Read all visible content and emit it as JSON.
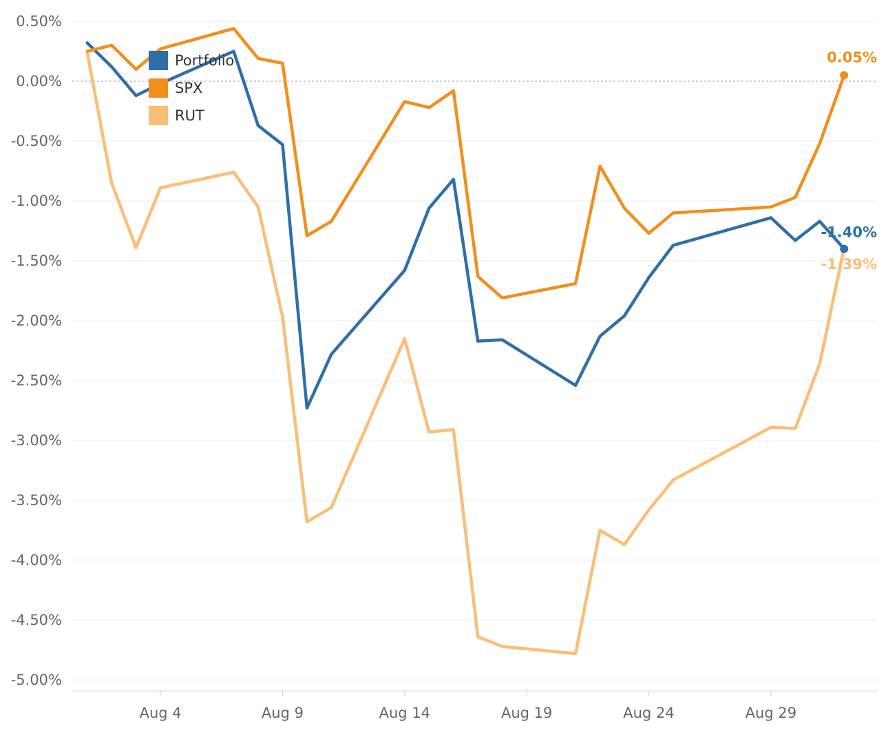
{
  "chart_data": {
    "type": "line",
    "title": "",
    "xlabel": "",
    "ylabel": "",
    "ylim": [
      -5.0,
      0.5
    ],
    "y_tick_labels": [
      "0.50%",
      "0.00%",
      "-0.50%",
      "-1.00%",
      "-1.50%",
      "-2.00%",
      "-2.50%",
      "-3.00%",
      "-3.50%",
      "-4.00%",
      "-4.50%",
      "-5.00%"
    ],
    "y_ticks": [
      0.5,
      0.0,
      -0.5,
      -1.0,
      -1.5,
      -2.0,
      -2.5,
      -3.0,
      -3.5,
      -4.0,
      -4.5,
      -5.0
    ],
    "x_ticks": [
      4,
      9,
      14,
      19,
      24,
      29
    ],
    "x_tick_labels": [
      "Aug 4",
      "Aug 9",
      "Aug 14",
      "Aug 19",
      "Aug 24",
      "Aug 29"
    ],
    "x_unit": "day of August",
    "xlim": [
      0.8,
      33.8
    ],
    "grid": "horizontal",
    "reference_line": 0.0,
    "legend_position": "top-left",
    "series": [
      {
        "name": "Portfolio",
        "color": "#2e6fa9",
        "end_label": "-1.40%",
        "points": [
          [
            1,
            0.32
          ],
          [
            2,
            0.12
          ],
          [
            3,
            -0.12
          ],
          [
            4,
            -0.02
          ],
          [
            7,
            0.25
          ],
          [
            8,
            -0.37
          ],
          [
            9,
            -0.53
          ],
          [
            10,
            -2.73
          ],
          [
            11,
            -2.28
          ],
          [
            14,
            -1.58
          ],
          [
            15,
            -1.06
          ],
          [
            16,
            -0.82
          ],
          [
            17,
            -2.17
          ],
          [
            18,
            -2.16
          ],
          [
            21,
            -2.54
          ],
          [
            22,
            -2.13
          ],
          [
            23,
            -1.96
          ],
          [
            24,
            -1.64
          ],
          [
            25,
            -1.37
          ],
          [
            29,
            -1.14
          ],
          [
            30,
            -1.33
          ],
          [
            31,
            -1.17
          ],
          [
            32,
            -1.4
          ]
        ]
      },
      {
        "name": "SPX",
        "color": "#f28e1c",
        "end_label": "0.05%",
        "points": [
          [
            1,
            0.25
          ],
          [
            2,
            0.3
          ],
          [
            3,
            0.1
          ],
          [
            4,
            0.27
          ],
          [
            7,
            0.44
          ],
          [
            8,
            0.19
          ],
          [
            9,
            0.15
          ],
          [
            10,
            -1.29
          ],
          [
            11,
            -1.17
          ],
          [
            14,
            -0.17
          ],
          [
            15,
            -0.22
          ],
          [
            16,
            -0.08
          ],
          [
            17,
            -1.63
          ],
          [
            18,
            -1.81
          ],
          [
            21,
            -1.69
          ],
          [
            22,
            -0.71
          ],
          [
            23,
            -1.06
          ],
          [
            24,
            -1.27
          ],
          [
            25,
            -1.1
          ],
          [
            29,
            -1.05
          ],
          [
            30,
            -0.97
          ],
          [
            31,
            -0.52
          ],
          [
            32,
            0.05
          ]
        ]
      },
      {
        "name": "RUT",
        "color": "#fbbd77",
        "end_label": "-1.39%",
        "points": [
          [
            1,
            0.24
          ],
          [
            2,
            -0.85
          ],
          [
            3,
            -1.39
          ],
          [
            4,
            -0.89
          ],
          [
            7,
            -0.76
          ],
          [
            8,
            -1.05
          ],
          [
            9,
            -1.97
          ],
          [
            10,
            -3.68
          ],
          [
            11,
            -3.56
          ],
          [
            14,
            -2.15
          ],
          [
            15,
            -2.93
          ],
          [
            16,
            -2.91
          ],
          [
            17,
            -4.64
          ],
          [
            18,
            -4.72
          ],
          [
            21,
            -4.78
          ],
          [
            22,
            -3.75
          ],
          [
            23,
            -3.87
          ],
          [
            24,
            -3.58
          ],
          [
            25,
            -3.33
          ],
          [
            29,
            -2.89
          ],
          [
            30,
            -2.9
          ],
          [
            31,
            -2.36
          ],
          [
            32,
            -1.39
          ]
        ]
      }
    ]
  }
}
